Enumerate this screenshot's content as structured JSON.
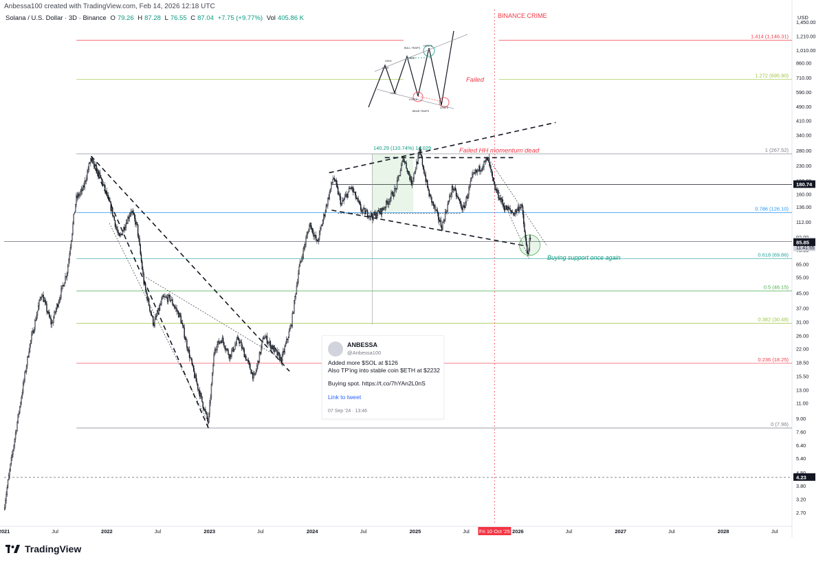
{
  "header": {
    "text": "Anbessa100 created with TradingView.com, Feb 14, 2026 12:18 UTC"
  },
  "symbol": {
    "name": "Solana / U.S. Dollar · 3D · Binance",
    "o_label": "O",
    "o": "79.26",
    "h_label": "H",
    "h": "87.28",
    "l_label": "L",
    "l": "76.55",
    "c_label": "C",
    "c": "87.04",
    "change": "+7.75 (+9.77%)",
    "vol_label": "Vol",
    "vol": "405.86 K"
  },
  "footer": {
    "brand": "TradingView"
  },
  "tweet": {
    "name": "ANBESSA",
    "handle": "@Anbessa100",
    "line1": "Added more $SOL at $126",
    "line2": "Also TP'ing into stable coin $ETH at $2232",
    "line3": "Buying spot. https://t.co/7hYAn2L0nS",
    "link": "Link to tweet",
    "date": "07 Sep '24 · 13:46"
  },
  "chart_data": {
    "type": "candlestick",
    "title": "",
    "symbol": "SOLUSD",
    "interval": "3D",
    "exchange": "Binance",
    "y_scale": "log",
    "currency_label": "USD",
    "ylim": [
      2.3,
      1700
    ],
    "xlim": [
      "2021-01-01",
      "2028-09-01"
    ],
    "x_ticks": [
      {
        "label": "2021",
        "date": "2021-01-01"
      },
      {
        "label": "Jul",
        "date": "2021-07-01"
      },
      {
        "label": "2022",
        "date": "2022-01-01"
      },
      {
        "label": "Jul",
        "date": "2022-07-01"
      },
      {
        "label": "2023",
        "date": "2023-01-01"
      },
      {
        "label": "Jul",
        "date": "2023-07-01"
      },
      {
        "label": "2024",
        "date": "2024-01-01"
      },
      {
        "label": "Jul",
        "date": "2024-07-01"
      },
      {
        "label": "2025",
        "date": "2025-01-01"
      },
      {
        "label": "Jul",
        "date": "2025-07-01"
      },
      {
        "label": "2026",
        "date": "2026-01-01"
      },
      {
        "label": "Jul",
        "date": "2026-07-01"
      },
      {
        "label": "2027",
        "date": "2027-01-01"
      },
      {
        "label": "Jul",
        "date": "2027-07-01"
      },
      {
        "label": "2028",
        "date": "2028-01-01"
      },
      {
        "label": "Jul",
        "date": "2028-07-01"
      }
    ],
    "y_ticks": [
      1450,
      1210,
      1010,
      860,
      710,
      590,
      490,
      410,
      340,
      280,
      230,
      190,
      160,
      136,
      112,
      92,
      78,
      65,
      55,
      45,
      37,
      31,
      26,
      22,
      18.5,
      15.5,
      13,
      11,
      9,
      7.6,
      6.4,
      5.4,
      4.5,
      3.8,
      3.2,
      2.7
    ],
    "y_tick_labels": [
      "1,450.00",
      "1,210.00",
      "1,010.00",
      "860.00",
      "710.00",
      "590.00",
      "490.00",
      "410.00",
      "340.00",
      "280.00",
      "230.00",
      "190.00",
      "160.00",
      "136.00",
      "112.00",
      "92.00",
      "78.00",
      "65.00",
      "55.00",
      "45.00",
      "37.00",
      "31.00",
      "26.00",
      "22.00",
      "18.50",
      "15.50",
      "13.00",
      "11.00",
      "9.00",
      "7.60",
      "6.40",
      "5.40",
      "4.50",
      "3.80",
      "3.20",
      "2.70"
    ],
    "price_path": [
      [
        "2021-01-01",
        2.8
      ],
      [
        "2021-02-15",
        8.0
      ],
      [
        "2021-04-01",
        22
      ],
      [
        "2021-05-15",
        45
      ],
      [
        "2021-06-20",
        30
      ],
      [
        "2021-08-15",
        60
      ],
      [
        "2021-09-15",
        150
      ],
      [
        "2021-10-10",
        170
      ],
      [
        "2021-11-06",
        250
      ],
      [
        "2021-12-15",
        190
      ],
      [
        "2022-01-20",
        130
      ],
      [
        "2022-02-15",
        90
      ],
      [
        "2022-03-30",
        130
      ],
      [
        "2022-04-20",
        105
      ],
      [
        "2022-05-15",
        50
      ],
      [
        "2022-06-18",
        30
      ],
      [
        "2022-07-20",
        42
      ],
      [
        "2022-08-15",
        42
      ],
      [
        "2022-09-20",
        33
      ],
      [
        "2022-11-08",
        16
      ],
      [
        "2022-12-29",
        8.5
      ],
      [
        "2023-01-20",
        22
      ],
      [
        "2023-02-15",
        25
      ],
      [
        "2023-03-15",
        20
      ],
      [
        "2023-04-15",
        25
      ],
      [
        "2023-06-10",
        15
      ],
      [
        "2023-07-15",
        26
      ],
      [
        "2023-09-15",
        19
      ],
      [
        "2023-10-20",
        30
      ],
      [
        "2023-11-15",
        60
      ],
      [
        "2023-12-25",
        110
      ],
      [
        "2024-01-20",
        85
      ],
      [
        "2024-03-18",
        200
      ],
      [
        "2024-04-15",
        140
      ],
      [
        "2024-05-20",
        175
      ],
      [
        "2024-06-25",
        130
      ],
      [
        "2024-08-05",
        120
      ],
      [
        "2024-09-07",
        130
      ],
      [
        "2024-10-25",
        170
      ],
      [
        "2024-11-22",
        255
      ],
      [
        "2024-12-20",
        185
      ],
      [
        "2025-01-19",
        275
      ],
      [
        "2025-02-20",
        160
      ],
      [
        "2025-04-07",
        105
      ],
      [
        "2025-05-15",
        175
      ],
      [
        "2025-06-22",
        130
      ],
      [
        "2025-07-25",
        200
      ],
      [
        "2025-09-18",
        250
      ],
      [
        "2025-10-10",
        175
      ],
      [
        "2025-11-15",
        135
      ],
      [
        "2025-12-20",
        125
      ],
      [
        "2026-01-15",
        140
      ],
      [
        "2026-02-05",
        72
      ],
      [
        "2026-02-13",
        87.04
      ]
    ],
    "current_price": 87.04,
    "price_labels": [
      {
        "label": "180.74",
        "value": 180.74
      },
      {
        "label": "87.04",
        "value": 87.04,
        "sub": "11:41:55"
      },
      {
        "label": "85.85",
        "value": 85.85
      },
      {
        "label": "4.23",
        "value": 4.23
      }
    ],
    "fib_levels": [
      {
        "label": "1.414 (1,146.31)",
        "value": 1146.31,
        "color": "#f23645"
      },
      {
        "label": "1.272 (695.90)",
        "value": 695.9,
        "color": "#9bc53d"
      },
      {
        "label": "1 (267.52)",
        "value": 267.52,
        "color": "#787b86"
      },
      {
        "label": "0.786 (126.10)",
        "value": 126.1,
        "color": "#2196f3"
      },
      {
        "label": "0.618 (69.86)",
        "value": 69.86,
        "color": "#26a69a"
      },
      {
        "label": "0.5 (46.15)",
        "value": 46.15,
        "color": "#4caf50"
      },
      {
        "label": "0.382 (30.48)",
        "value": 30.48,
        "color": "#9bc53d"
      },
      {
        "label": "0.236 (18.25)",
        "value": 18.25,
        "color": "#f23645"
      },
      {
        "label": "0 (7.96)",
        "value": 7.96,
        "color": "#787b86"
      }
    ],
    "annotations": [
      {
        "text": "BINANCE CRIME",
        "color": "#f23645"
      },
      {
        "text": "Failed",
        "color": "#f23645"
      },
      {
        "text": "Failed HH momentum dead",
        "color": "#f23645"
      },
      {
        "text": "140.29 (110.74%) 14,029",
        "color": "#089981"
      },
      {
        "text": "Buying support once again",
        "color": "#089981"
      }
    ],
    "x_highlight": {
      "label": "Fri 10 Oct '25",
      "date": "2025-10-10"
    },
    "inset_labels": [
      "BULL TRAPS",
      "HIGH",
      "HIGH",
      "HIGH",
      "HIGH 5",
      "LOW",
      "LOW 3",
      "LOW 5",
      "BEAR TRAPS"
    ],
    "colors": {
      "up": "#131722",
      "down": "#131722",
      "accent_red": "#f23645",
      "accent_green": "#089981"
    }
  }
}
